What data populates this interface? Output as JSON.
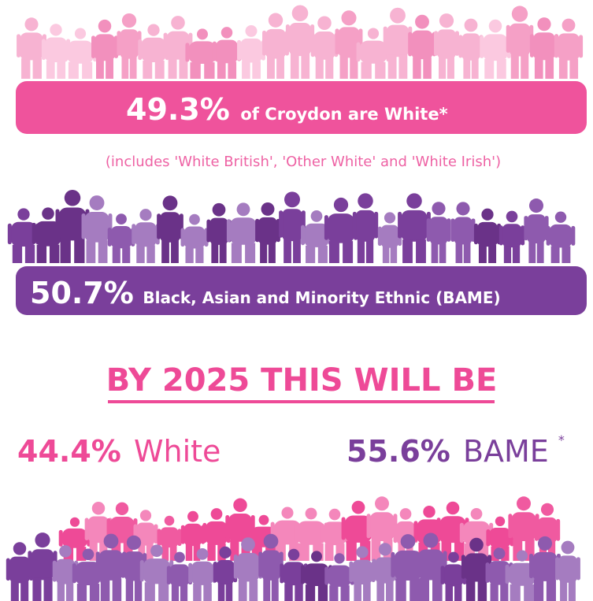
{
  "current": {
    "white": {
      "percent": "49.3%",
      "label": "of Croydon are White*"
    },
    "note": "(includes 'White British', 'Other White' and 'White Irish')",
    "bame": {
      "percent": "50.7%",
      "label": "Black, Asian and Minority Ethnic (BAME)"
    }
  },
  "projection": {
    "heading": "BY 2025 THIS WILL BE",
    "white": {
      "percent": "44.4%",
      "label": "White"
    },
    "bame": {
      "percent": "55.6%",
      "label": "BAME",
      "footnote": "*"
    }
  }
}
